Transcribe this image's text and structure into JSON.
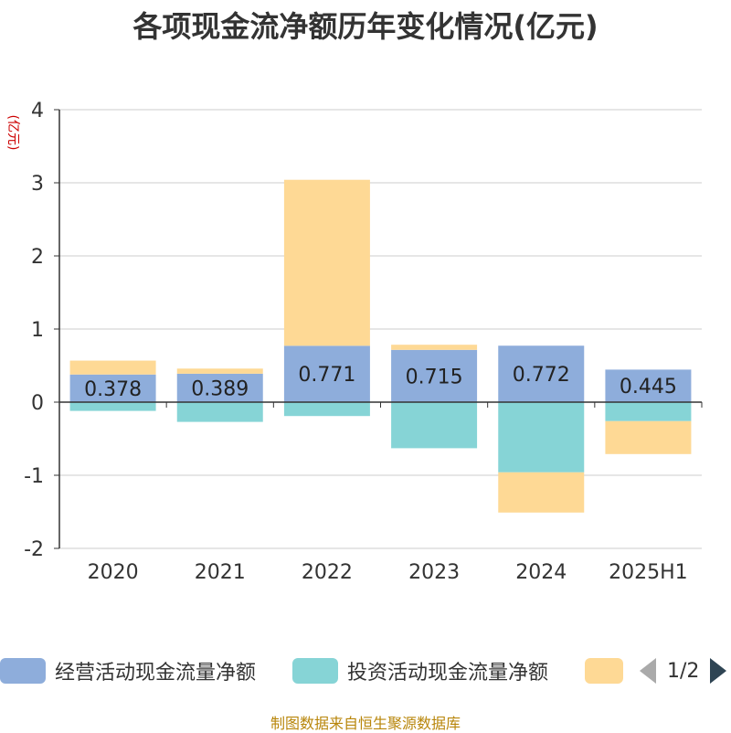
{
  "title": "各项现金流净额历年变化情况(亿元)",
  "source": "制图数据来自恒生聚源数据库",
  "legend": {
    "items": [
      {
        "label": "经营活动现金流量净额",
        "color": "#8eaddb"
      },
      {
        "label": "投资活动现金流量净额",
        "color": "#86d4d6"
      },
      {
        "label": "",
        "color": "#fed995"
      }
    ],
    "page": "1/2"
  },
  "chart_data": {
    "type": "bar",
    "stacked": true,
    "title": "各项现金流净额历年变化情况(亿元)",
    "ylabel": "(亿元)",
    "xlabel": "",
    "ylim": [
      -2,
      4
    ],
    "yticks": [
      4,
      3,
      2,
      1,
      0,
      -1,
      -2
    ],
    "grid": true,
    "legend_position": "bottom",
    "categories": [
      "2020",
      "2021",
      "2022",
      "2023",
      "2024",
      "2025H1"
    ],
    "series": [
      {
        "name": "经营活动现金流量净额",
        "color": "#8eaddb",
        "values": [
          0.378,
          0.389,
          0.771,
          0.715,
          0.772,
          0.445
        ],
        "labels": [
          "0.378",
          "0.389",
          "0.771",
          "0.715",
          "0.772",
          "0.445"
        ]
      },
      {
        "name": "投资活动现金流量净额",
        "color": "#86d4d6",
        "values": [
          -0.12,
          -0.27,
          -0.19,
          -0.63,
          -0.96,
          -0.26
        ],
        "labels": null
      },
      {
        "name": "",
        "color": "#fed995",
        "values": [
          0.19,
          0.07,
          2.27,
          0.07,
          -0.55,
          -0.45
        ],
        "labels": null
      }
    ]
  }
}
